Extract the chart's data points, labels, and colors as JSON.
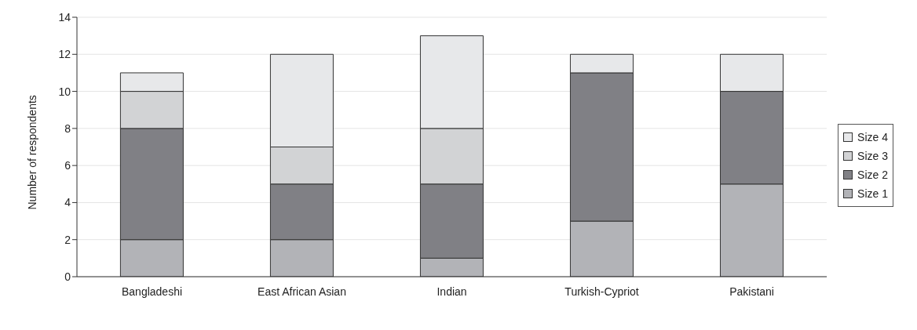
{
  "chart_data": {
    "type": "bar",
    "stacked": true,
    "ylabel": "Number of respondents",
    "categories": [
      "Bangladeshi",
      "East African Asian",
      "Indian",
      "Turkish-Cypriot",
      "Pakistani"
    ],
    "series": [
      {
        "name": "Size 1",
        "color": "#b2b3b7",
        "values": [
          2,
          2,
          1,
          3,
          5
        ]
      },
      {
        "name": "Size 2",
        "color": "#808085",
        "values": [
          6,
          3,
          4,
          8,
          5
        ]
      },
      {
        "name": "Size 3",
        "color": "#d2d3d5",
        "values": [
          2,
          2,
          3,
          0,
          0
        ]
      },
      {
        "name": "Size 4",
        "color": "#e7e8ea",
        "values": [
          1,
          5,
          5,
          1,
          2
        ]
      }
    ],
    "ylim": [
      0,
      14
    ],
    "yticks": [
      0,
      2,
      4,
      6,
      8,
      10,
      12,
      14
    ],
    "grid": "y",
    "legend": "right"
  }
}
